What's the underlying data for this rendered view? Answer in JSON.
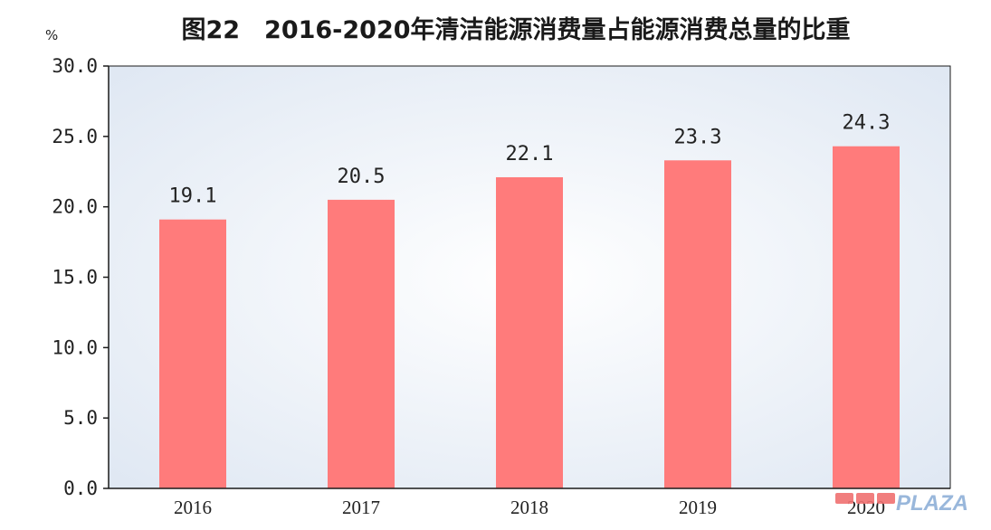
{
  "chart_data": {
    "type": "bar",
    "title": "图22　2016-2020年清洁能源消费量占能源消费总量的比重",
    "unit_label": "%",
    "xlabel": "",
    "ylabel": "",
    "categories": [
      "2016",
      "2017",
      "2018",
      "2019",
      "2020"
    ],
    "values": [
      19.1,
      20.5,
      22.1,
      23.3,
      24.3
    ],
    "data_labels": [
      "19.1",
      "20.5",
      "22.1",
      "23.3",
      "24.3"
    ],
    "ylim": [
      0,
      30
    ],
    "y_ticks": [
      0,
      5,
      10,
      15,
      20,
      25,
      30
    ],
    "y_tick_labels": [
      "0.0",
      "5.0",
      "10.0",
      "15.0",
      "20.0",
      "25.0",
      "30.0"
    ],
    "grid": false,
    "colors": {
      "bar": "#ff7b7b",
      "plot_background_outer": "#dde6f2",
      "plot_background_inner": "#ffffff",
      "frame": "#1a1a1a"
    }
  },
  "watermark": {
    "text": "PLAZA"
  }
}
